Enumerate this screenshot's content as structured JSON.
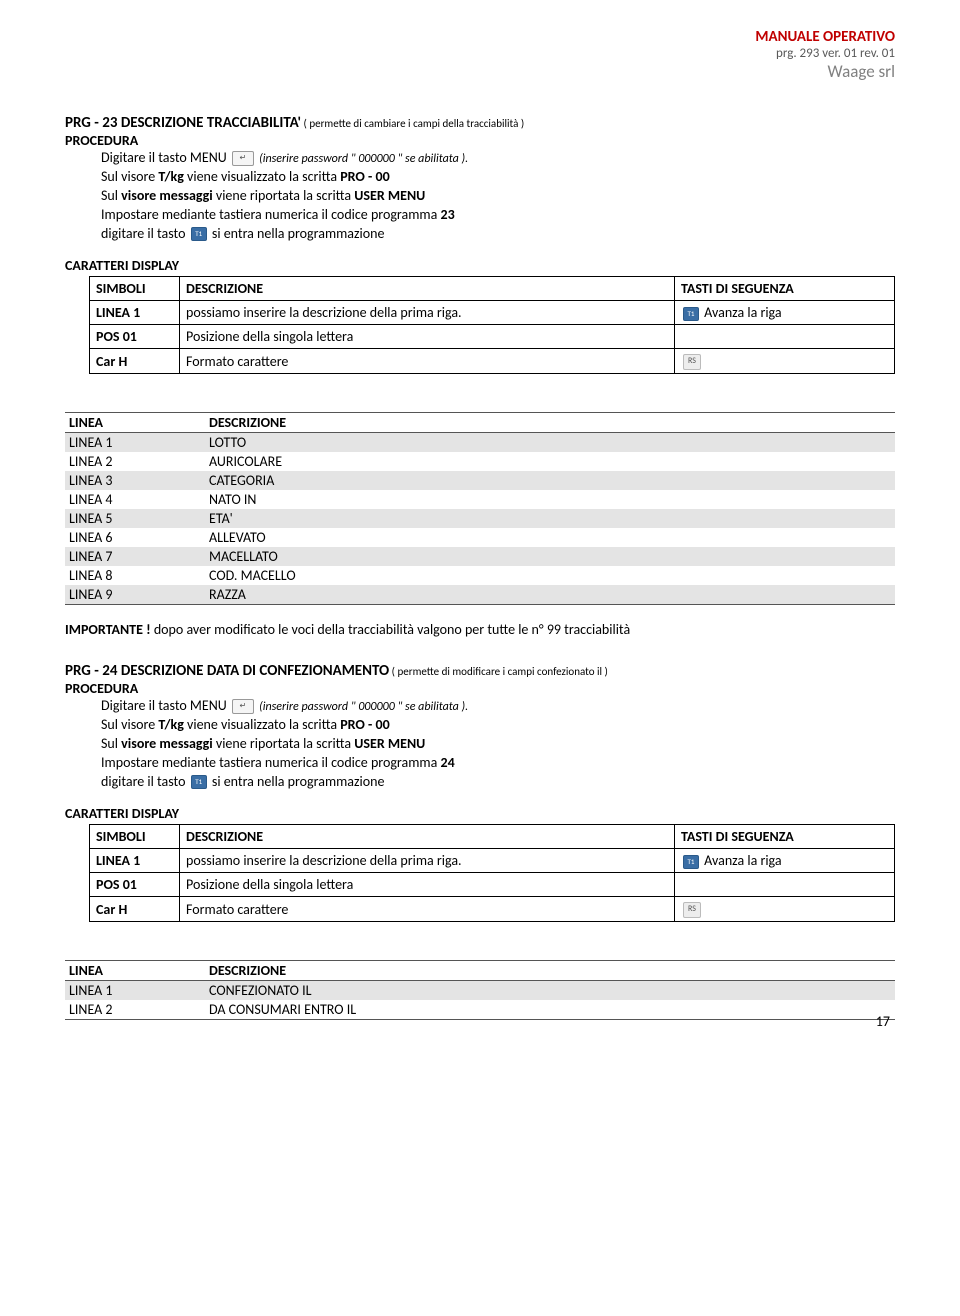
{
  "header": {
    "title": "MANUALE OPERATIVO",
    "sub": "prg. 293 ver. 01 rev. 01",
    "company": "Waage srl"
  },
  "prg23": {
    "title_main": "PRG - 23 DESCRIZIONE TRACCIABILITA'",
    "title_note": " ( permette di cambiare i campi della tracciabilità )",
    "proc_label": "PROCEDURA",
    "menu_prefix": "Digitare il tasto MENU ",
    "menu_hint": "(inserire password \" 000000 \" se abilitata ).",
    "line1_a": "Sul visore ",
    "line1_b": "T/kg",
    "line1_c": " viene visualizzato la scritta ",
    "line1_d": "PRO - 00",
    "line2_a": "Sul ",
    "line2_b": "visore messaggi",
    "line2_c": " viene riportata la scritta ",
    "line2_d": "USER MENU",
    "line3_a": "Impostare mediante tastiera numerica il codice programma ",
    "line3_b": "23",
    "line4_a": "digitare il tasto ",
    "line4_b": " si entra nella programmazione"
  },
  "display1": {
    "heading": "CARATTERI DISPLAY",
    "cols": [
      "SIMBOLI",
      "DESCRIZIONE",
      "TASTI DI SEGUENZA"
    ],
    "rows": [
      {
        "c0": "LINEA 1",
        "c1": "possiamo inserire la descrizione della prima riga.",
        "c2": " Avanza la riga",
        "icon": "t1"
      },
      {
        "c0": "POS 01",
        "c1": "Posizione della singola lettera",
        "c2": "",
        "icon": ""
      },
      {
        "c0": "Car H",
        "c1": "Formato carattere",
        "c2": "",
        "icon": "rs"
      }
    ]
  },
  "zebra1": {
    "head": [
      "LINEA",
      "DESCRIZIONE"
    ],
    "rows": [
      [
        "LINEA 1",
        "LOTTO"
      ],
      [
        "LINEA 2",
        "AURICOLARE"
      ],
      [
        "LINEA 3",
        "CATEGORIA"
      ],
      [
        "LINEA 4",
        "NATO IN"
      ],
      [
        "LINEA 5",
        "ETA'"
      ],
      [
        "LINEA 6",
        "ALLEVATO"
      ],
      [
        "LINEA 7",
        "MACELLATO"
      ],
      [
        "LINEA 8",
        "COD. MACELLO"
      ],
      [
        "LINEA 9",
        "RAZZA"
      ]
    ]
  },
  "importante": {
    "label": "IMPORTANTE !",
    "text": " dopo aver modificato le voci della tracciabilità valgono per tutte le n° 99 tracciabilità"
  },
  "prg24": {
    "title_main": "PRG - 24 DESCRIZIONE DATA DI CONFEZIONAMENTO",
    "title_note": " ( permette di modificare  i campi confezionato il   )",
    "proc_label": "PROCEDURA",
    "menu_prefix": "Digitare il tasto MENU ",
    "menu_hint": "(inserire password \" 000000 \" se abilitata ).",
    "line1_a": "Sul visore ",
    "line1_b": "T/kg",
    "line1_c": " viene visualizzato la scritta ",
    "line1_d": "PRO - 00",
    "line2_a": "Sul ",
    "line2_b": "visore messaggi",
    "line2_c": " viene riportata la scritta ",
    "line2_d": "USER MENU",
    "line3_a": "Impostare mediante tastiera numerica il codice programma ",
    "line3_b": "24",
    "line4_a": "digitare il tasto ",
    "line4_b": " si entra nella programmazione"
  },
  "display2": {
    "heading": "CARATTERI DISPLAY",
    "cols": [
      "SIMBOLI",
      "DESCRIZIONE",
      "TASTI DI SEGUENZA"
    ],
    "rows": [
      {
        "c0": "LINEA 1",
        "c1": "possiamo inserire la descrizione della prima riga.",
        "c2": " Avanza la riga",
        "icon": "t1"
      },
      {
        "c0": "POS 01",
        "c1": "Posizione della singola lettera",
        "c2": "",
        "icon": ""
      },
      {
        "c0": "Car H",
        "c1": "Formato carattere",
        "c2": "",
        "icon": "rs"
      }
    ]
  },
  "zebra2": {
    "head": [
      "LINEA",
      "DESCRIZIONE"
    ],
    "rows": [
      [
        "LINEA 1",
        "CONFEZIONATO IL"
      ],
      [
        "LINEA 2",
        "DA CONSUMARI ENTRO IL"
      ]
    ]
  },
  "page_number": "17",
  "icons": {
    "enter": "↵",
    "t1": "T1",
    "rs": "RS"
  }
}
